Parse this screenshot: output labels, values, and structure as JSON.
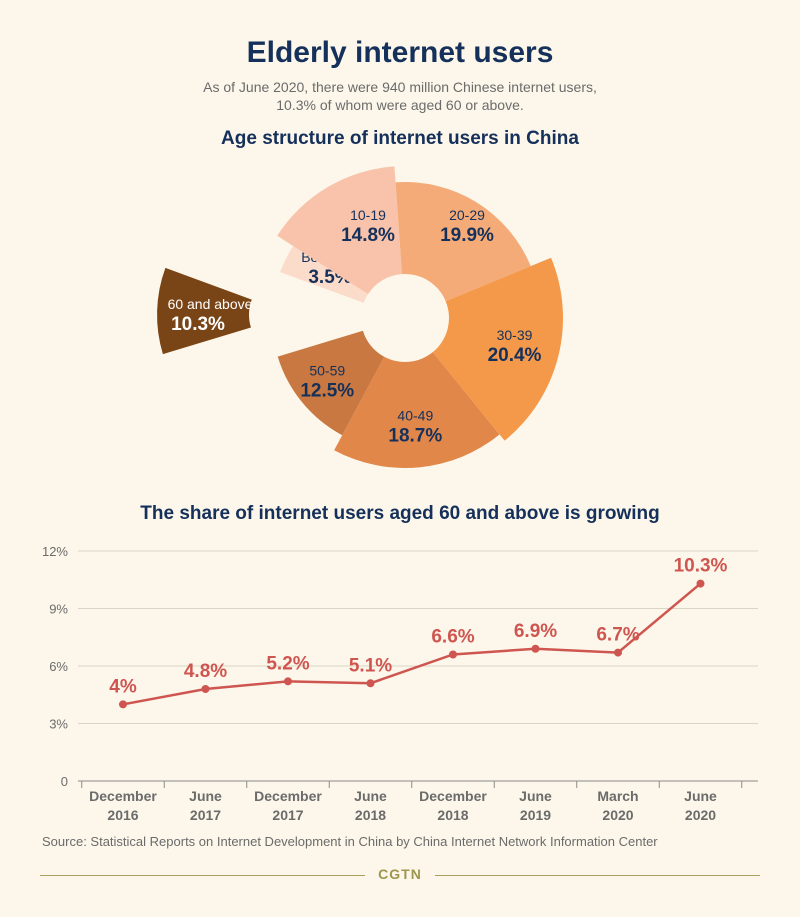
{
  "header": {
    "title": "Elderly internet users",
    "subtitle_line1": "As of June 2020, there were 940 million Chinese internet users,",
    "subtitle_line2": "10.3% of whom were aged 60 or above."
  },
  "chart_data": [
    {
      "type": "pie",
      "title": "Age structure of internet users in China",
      "slices": [
        {
          "label": "20-29",
          "value": 19.9,
          "display": "19.9%",
          "color": "#f4ab78"
        },
        {
          "label": "30-39",
          "value": 20.4,
          "display": "20.4%",
          "color": "#f4984a"
        },
        {
          "label": "40-49",
          "value": 18.7,
          "display": "18.7%",
          "color": "#e2874a"
        },
        {
          "label": "50-59",
          "value": 12.5,
          "display": "12.5%",
          "color": "#c87840"
        },
        {
          "label": "60 and above",
          "value": 10.3,
          "display": "10.3%",
          "color": "#7a4516"
        },
        {
          "label": "Below 10",
          "value": 3.5,
          "display": "3.5%",
          "color": "#fbdcca"
        },
        {
          "label": "10-19",
          "value": 14.8,
          "display": "14.8%",
          "color": "#f8c3aa"
        }
      ]
    },
    {
      "type": "line",
      "title": "The share of internet users aged 60 and above is growing",
      "categories": [
        [
          "December",
          "2016"
        ],
        [
          "June",
          "2017"
        ],
        [
          "December",
          "2017"
        ],
        [
          "June",
          "2018"
        ],
        [
          "December",
          "2018"
        ],
        [
          "June",
          "2019"
        ],
        [
          "March",
          "2020"
        ],
        [
          "June",
          "2020"
        ]
      ],
      "values": [
        4,
        4.8,
        5.2,
        5.1,
        6.6,
        6.9,
        6.7,
        10.3
      ],
      "labels": [
        "4%",
        "4.8%",
        "5.2%",
        "5.1%",
        "6.6%",
        "6.9%",
        "6.7%",
        "10.3%"
      ],
      "yticks": [
        "0",
        "3%",
        "6%",
        "9%",
        "12%"
      ],
      "ylim": [
        0,
        12
      ],
      "grid": true,
      "color": "#cf5650"
    }
  ],
  "footer": {
    "source": "Source: Statistical Reports on Internet Development in China by China Internet Network Information Center",
    "brand": "CGTN"
  }
}
